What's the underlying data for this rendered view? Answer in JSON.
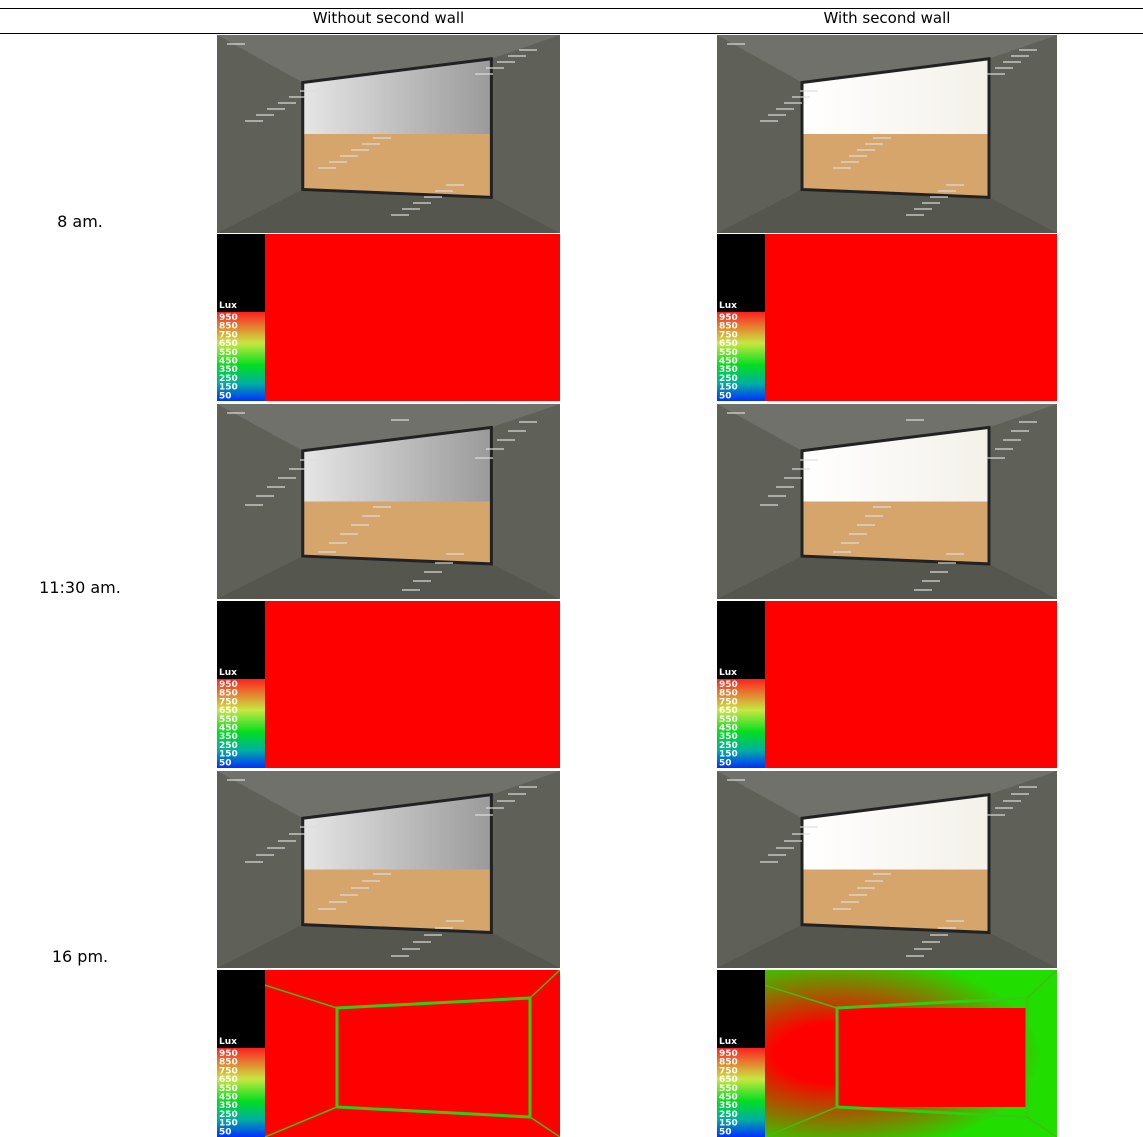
{
  "header": {
    "columns": [
      "Without second wall",
      "With second wall"
    ]
  },
  "rows": [
    {
      "label": "8 am."
    },
    {
      "label": "11:30 am."
    },
    {
      "label": "16 pm."
    }
  ],
  "legend": {
    "title": "Lux",
    "ticks": [
      "950",
      "850",
      "750",
      "650",
      "550",
      "450",
      "350",
      "250",
      "150",
      "50"
    ]
  }
}
